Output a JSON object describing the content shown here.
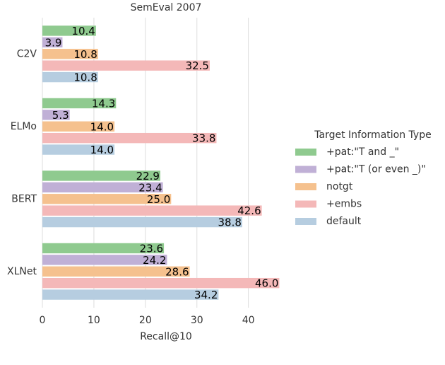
{
  "chart_data": {
    "type": "barh",
    "title": "SemEval 2007",
    "x_label": "Recall@10",
    "categories": [
      "C2V",
      "ELMo",
      "BERT",
      "XLNet"
    ],
    "legend_title": "Target Information Type",
    "legend_position": "right",
    "grid": true,
    "xlim": [
      0,
      48
    ],
    "xticks": [
      0,
      10,
      20,
      30,
      40
    ],
    "series": [
      {
        "name": "+pat:\"T and _\"",
        "color": "#8fca8f",
        "values": [
          10.4,
          14.3,
          22.9,
          23.6
        ],
        "value_labels": [
          "10.4",
          "14.3",
          "22.9",
          "23.6"
        ]
      },
      {
        "name": "+pat:\"T (or even _)\"",
        "color": "#c0b0d6",
        "values": [
          3.9,
          5.3,
          23.4,
          24.2
        ],
        "value_labels": [
          "3.9",
          "5.3",
          "23.4",
          "24.2"
        ]
      },
      {
        "name": "notgt",
        "color": "#f5c18e",
        "values": [
          10.8,
          14.0,
          25.0,
          28.6
        ],
        "value_labels": [
          "10.8",
          "14.0",
          "25.0",
          "28.6"
        ]
      },
      {
        "name": "+embs",
        "color": "#f4b8b8",
        "values": [
          32.5,
          33.8,
          42.6,
          46.0
        ],
        "value_labels": [
          "32.5",
          "33.8",
          "42.6",
          "46.0"
        ]
      },
      {
        "name": "default",
        "color": "#b6cde0",
        "values": [
          10.8,
          14.0,
          38.8,
          34.2
        ],
        "value_labels": [
          "10.8",
          "14.0",
          "38.8",
          "34.2"
        ]
      }
    ]
  }
}
